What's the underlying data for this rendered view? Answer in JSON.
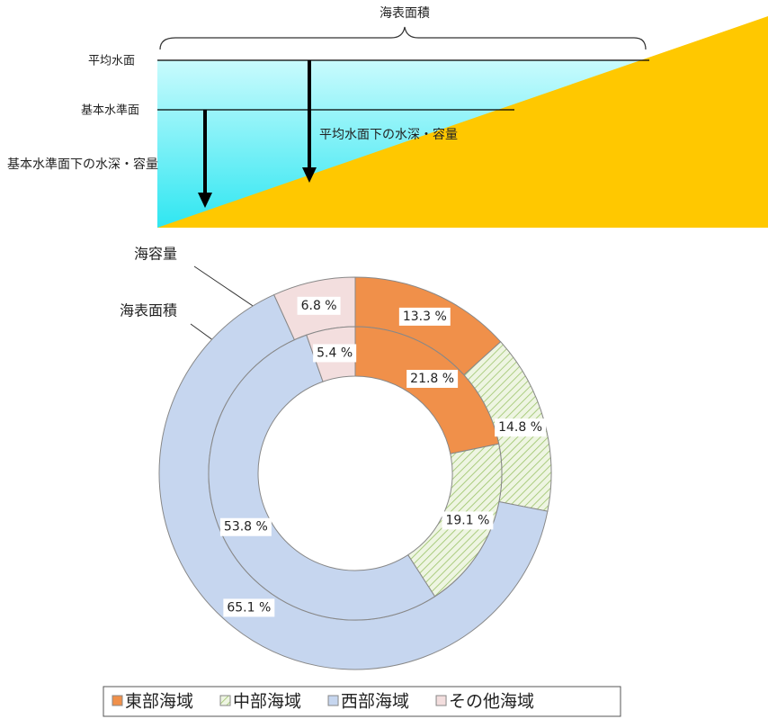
{
  "diagram": {
    "area_label": "海表面積",
    "mean_level": "平均水面",
    "datum_level": "基本水準面",
    "mean_depth": "平均水面下の水深・容量",
    "datum_depth": "基本水準面下の水深・容量"
  },
  "chart_data": {
    "type": "donut",
    "categories": [
      "東部海域",
      "中部海域",
      "西部海域",
      "その他海域"
    ],
    "colors": [
      "#f0904a",
      "#eef5e2",
      "#c6d6ef",
      "#f3dede"
    ],
    "hatch": [
      false,
      true,
      false,
      false
    ],
    "series": [
      {
        "name": "海容量",
        "values": [
          13.3,
          14.8,
          65.1,
          6.8
        ],
        "value_labels": [
          "13.3 %",
          "14.8 %",
          "65.1 %",
          "6.8 %"
        ]
      },
      {
        "name": "海表面積",
        "values": [
          21.8,
          19.1,
          53.8,
          5.4
        ],
        "value_labels": [
          "21.8 %",
          "19.1 %",
          "53.8 %",
          "5.4 %"
        ]
      }
    ]
  }
}
